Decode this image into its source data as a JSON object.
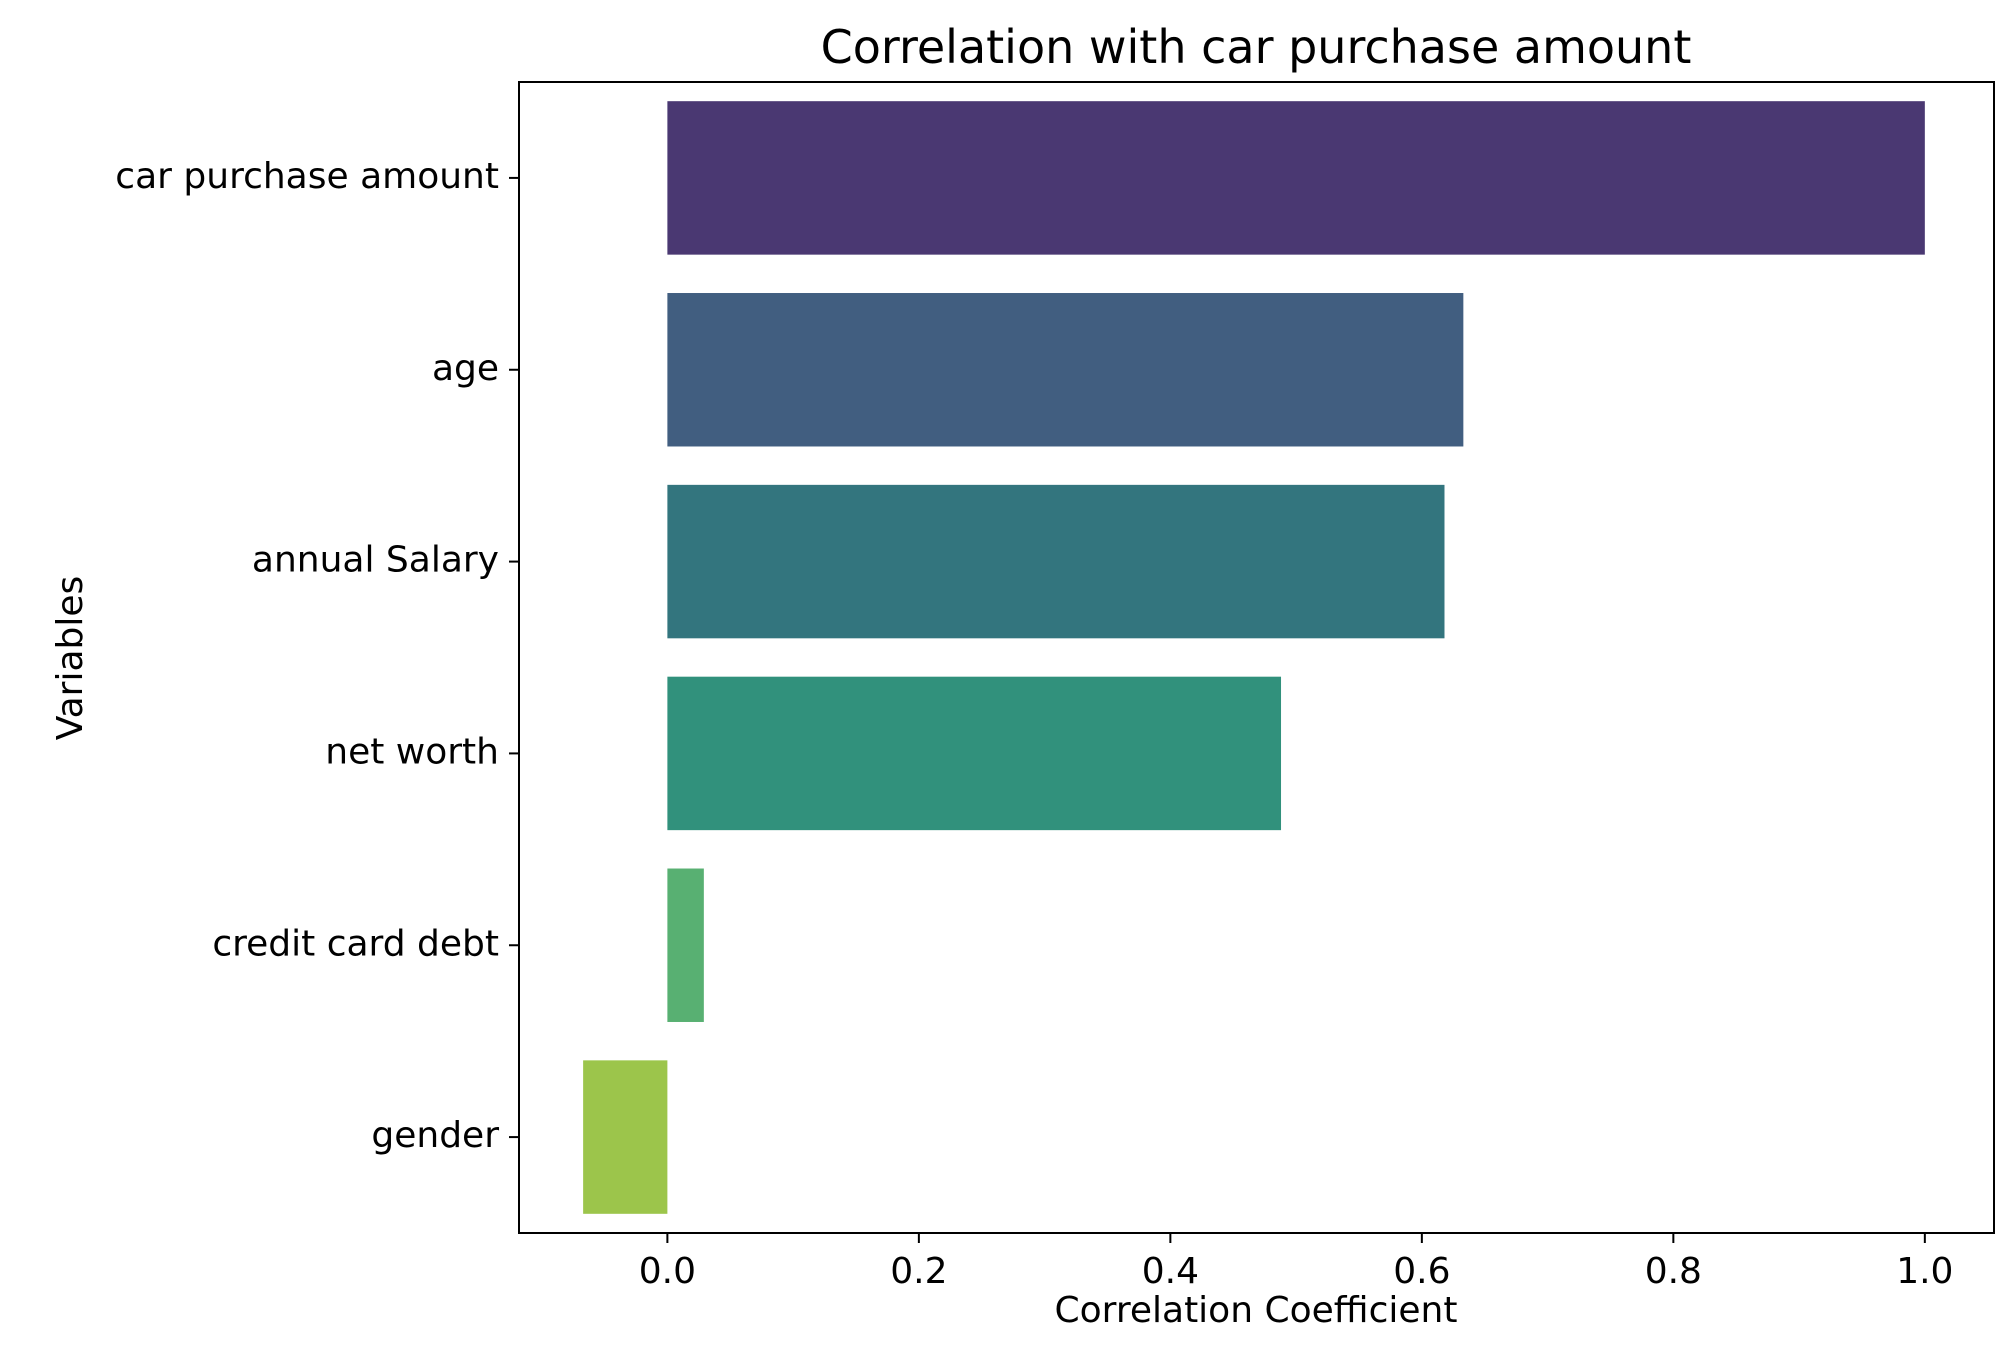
{
  "chart_data": {
    "type": "bar",
    "orientation": "horizontal",
    "title": "Correlation with car purchase amount",
    "xlabel": "Correlation Coefficient",
    "ylabel": "Variables",
    "categories": [
      "car purchase amount",
      "age",
      "annual Salary",
      "net worth",
      "credit card debt",
      "gender"
    ],
    "values": [
      1.0,
      0.633,
      0.618,
      0.488,
      0.029,
      -0.067
    ],
    "colors": [
      "#4a3872",
      "#415e80",
      "#33757e",
      "#31917c",
      "#58b072",
      "#9cc54b"
    ],
    "xlim": [
      -0.118,
      1.055
    ],
    "xticks": [
      0.0,
      0.2,
      0.4,
      0.6,
      0.8,
      1.0
    ],
    "xtick_labels": [
      "0.0",
      "0.2",
      "0.4",
      "0.6",
      "0.8",
      "1.0"
    ],
    "grid": false,
    "legend": "none"
  }
}
